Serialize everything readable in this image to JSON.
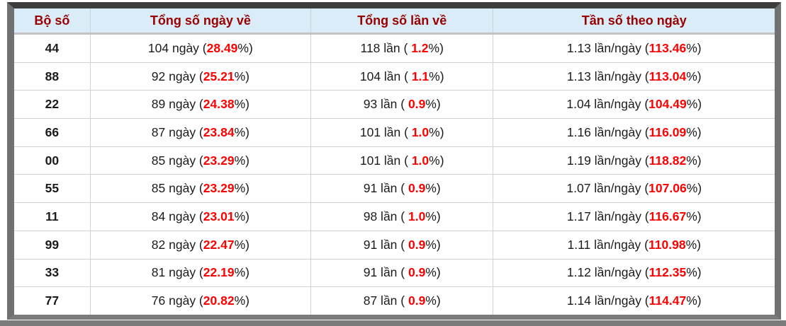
{
  "table": {
    "columns": [
      {
        "label": "Bộ số"
      },
      {
        "label": "Tổng số ngày về"
      },
      {
        "label": "Tổng số lần về"
      },
      {
        "label": "Tần số theo ngày"
      }
    ],
    "rows": [
      {
        "pair": "44",
        "days": {
          "prefix": "104 ngày (",
          "highlight": "28.49",
          "suffix": "%)"
        },
        "times": {
          "prefix": "118 lần ( ",
          "highlight": "1.2",
          "suffix": "%)"
        },
        "freq": {
          "prefix": "1.13 lần/ngày (",
          "highlight": "113.46",
          "suffix": "%)"
        }
      },
      {
        "pair": "88",
        "days": {
          "prefix": "92 ngày (",
          "highlight": "25.21",
          "suffix": "%)"
        },
        "times": {
          "prefix": "104 lần ( ",
          "highlight": "1.1",
          "suffix": "%)"
        },
        "freq": {
          "prefix": "1.13 lần/ngày (",
          "highlight": "113.04",
          "suffix": "%)"
        }
      },
      {
        "pair": "22",
        "days": {
          "prefix": "89 ngày (",
          "highlight": "24.38",
          "suffix": "%)"
        },
        "times": {
          "prefix": "93 lần ( ",
          "highlight": "0.9",
          "suffix": "%)"
        },
        "freq": {
          "prefix": "1.04 lần/ngày (",
          "highlight": "104.49",
          "suffix": "%)"
        }
      },
      {
        "pair": "66",
        "days": {
          "prefix": "87 ngày (",
          "highlight": "23.84",
          "suffix": "%)"
        },
        "times": {
          "prefix": "101 lần ( ",
          "highlight": "1.0",
          "suffix": "%)"
        },
        "freq": {
          "prefix": "1.16 lần/ngày (",
          "highlight": "116.09",
          "suffix": "%)"
        }
      },
      {
        "pair": "00",
        "days": {
          "prefix": "85 ngày (",
          "highlight": "23.29",
          "suffix": "%)"
        },
        "times": {
          "prefix": "101 lần ( ",
          "highlight": "1.0",
          "suffix": "%)"
        },
        "freq": {
          "prefix": "1.19 lần/ngày (",
          "highlight": "118.82",
          "suffix": "%)"
        }
      },
      {
        "pair": "55",
        "days": {
          "prefix": "85 ngày (",
          "highlight": "23.29",
          "suffix": "%)"
        },
        "times": {
          "prefix": "91 lần ( ",
          "highlight": "0.9",
          "suffix": "%)"
        },
        "freq": {
          "prefix": "1.07 lần/ngày (",
          "highlight": "107.06",
          "suffix": "%)"
        }
      },
      {
        "pair": "11",
        "days": {
          "prefix": "84 ngày (",
          "highlight": "23.01",
          "suffix": "%)"
        },
        "times": {
          "prefix": "98 lần ( ",
          "highlight": "1.0",
          "suffix": "%)"
        },
        "freq": {
          "prefix": "1.17 lần/ngày (",
          "highlight": "116.67",
          "suffix": "%)"
        }
      },
      {
        "pair": "99",
        "days": {
          "prefix": "82 ngày (",
          "highlight": "22.47",
          "suffix": "%)"
        },
        "times": {
          "prefix": "91 lần ( ",
          "highlight": "0.9",
          "suffix": "%)"
        },
        "freq": {
          "prefix": "1.11 lần/ngày (",
          "highlight": "110.98",
          "suffix": "%)"
        }
      },
      {
        "pair": "33",
        "days": {
          "prefix": "81 ngày (",
          "highlight": "22.19",
          "suffix": "%)"
        },
        "times": {
          "prefix": "91 lần ( ",
          "highlight": "0.9",
          "suffix": "%)"
        },
        "freq": {
          "prefix": "1.12 lần/ngày (",
          "highlight": "112.35",
          "suffix": "%)"
        }
      },
      {
        "pair": "77",
        "days": {
          "prefix": "76 ngày (",
          "highlight": "20.82",
          "suffix": "%)"
        },
        "times": {
          "prefix": "87 lần ( ",
          "highlight": "0.9",
          "suffix": "%)"
        },
        "freq": {
          "prefix": "1.14 lần/ngày (",
          "highlight": "114.47",
          "suffix": "%)"
        }
      }
    ]
  },
  "colors": {
    "header_background": "#d9ecf7",
    "header_text": "#990000",
    "highlight_red": "#ff0000",
    "body_text": "#1b1b1b",
    "frame_top": "#3d3d3d",
    "frame_sides": "#707172",
    "grid_line": "#d2d2d2",
    "bottom_bar": "#7b7b7b"
  }
}
